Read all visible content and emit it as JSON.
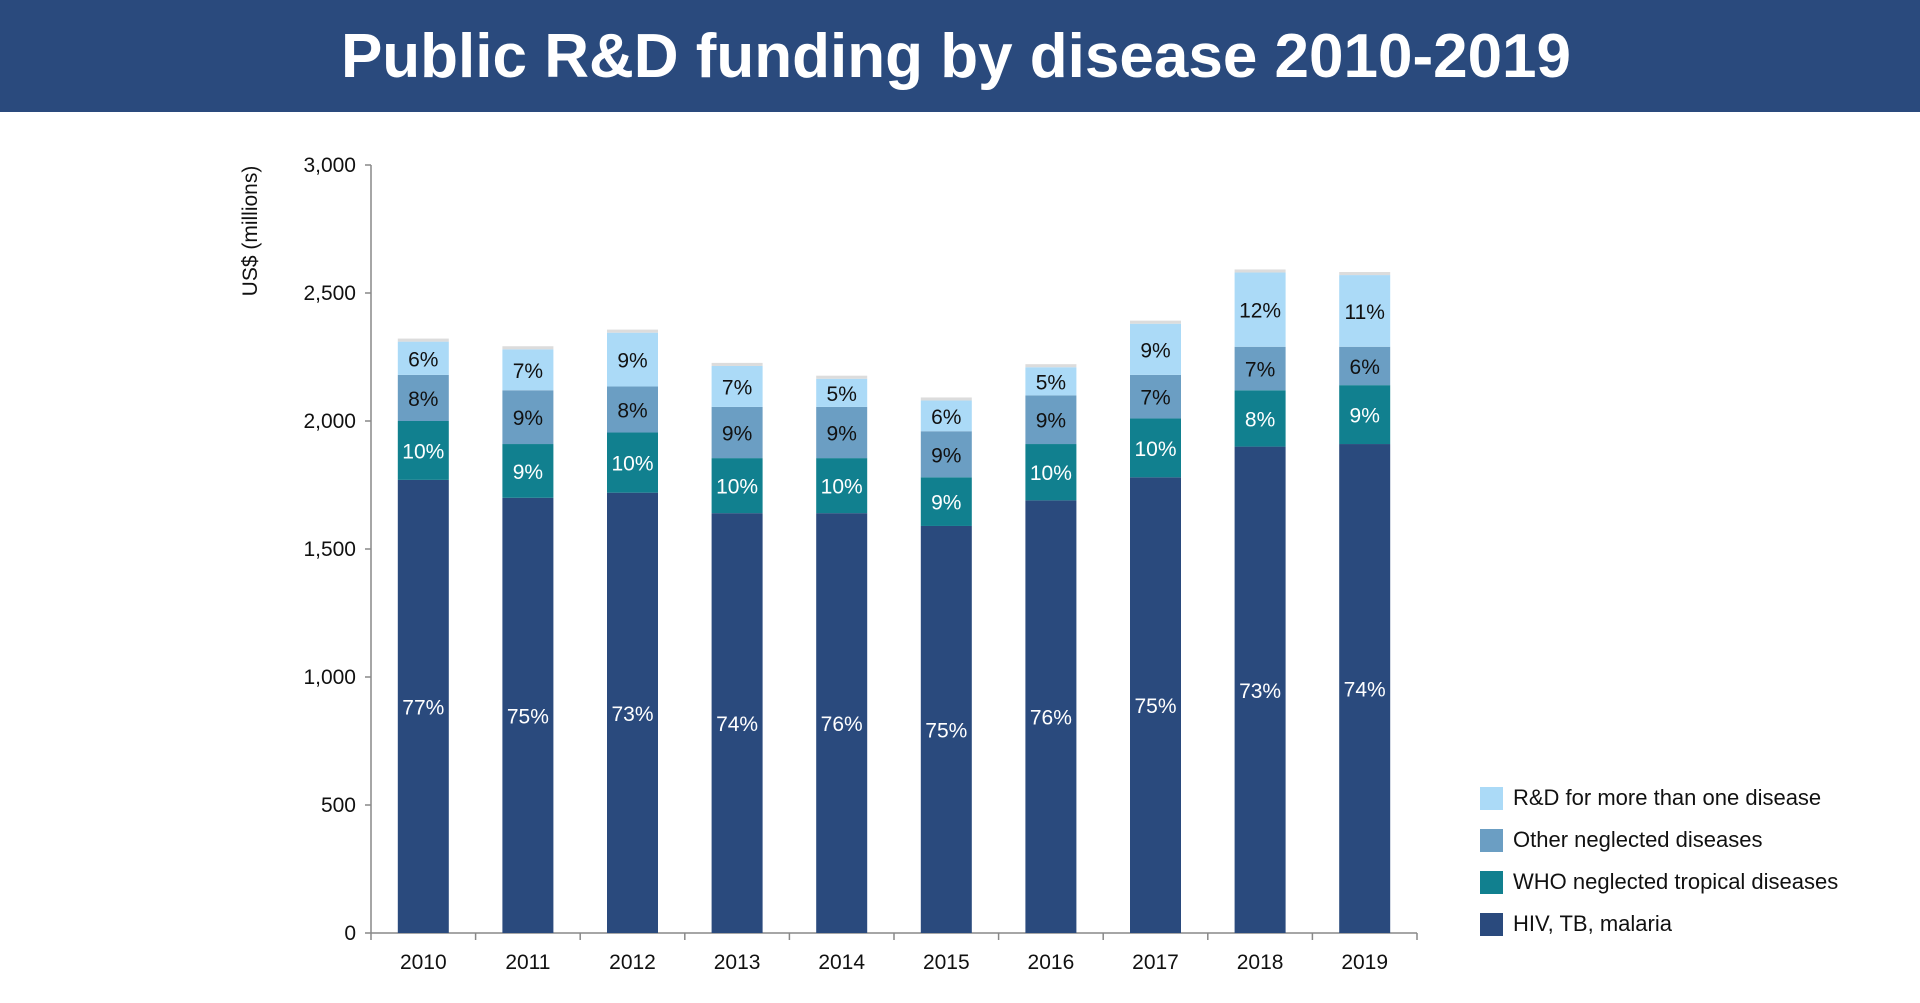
{
  "header": {
    "title": "Public R&D funding by disease 2010-2019"
  },
  "chart_data": {
    "type": "bar",
    "stacked": true,
    "title": "Public R&D funding by disease 2010-2019",
    "xlabel": "",
    "ylabel": "US$ (millions)",
    "ylim": [
      0,
      3000
    ],
    "yticks": [
      0,
      500,
      1000,
      1500,
      2000,
      2500,
      3000
    ],
    "ytick_labels": [
      "0",
      "500",
      "1,000",
      "1,500",
      "2,000",
      "2,500",
      "3,000"
    ],
    "grid": false,
    "legend_position": "bottom-right",
    "categories": [
      "2010",
      "2011",
      "2012",
      "2013",
      "2014",
      "2015",
      "2016",
      "2017",
      "2018",
      "2019"
    ],
    "series": [
      {
        "name": "HIV, TB, malaria",
        "color": "#2a4a7d",
        "label_color": "#ffffff",
        "values": [
          1770,
          1700,
          1720,
          1640,
          1640,
          1590,
          1690,
          1780,
          1900,
          1910
        ],
        "labels": [
          "77%",
          "75%",
          "73%",
          "74%",
          "76%",
          "75%",
          "76%",
          "75%",
          "73%",
          "74%"
        ]
      },
      {
        "name": "WHO neglected tropical diseases",
        "color": "#11808f",
        "label_color": "#ffffff",
        "values": [
          230,
          210,
          235,
          215,
          215,
          190,
          220,
          230,
          220,
          230
        ],
        "labels": [
          "10%",
          "9%",
          "10%",
          "10%",
          "10%",
          "9%",
          "10%",
          "10%",
          "8%",
          "9%"
        ]
      },
      {
        "name": "Other neglected diseases",
        "color": "#6b9ec3",
        "label_color": "#111111",
        "values": [
          180,
          210,
          180,
          200,
          200,
          180,
          190,
          170,
          170,
          150
        ],
        "labels": [
          "8%",
          "9%",
          "8%",
          "9%",
          "9%",
          "9%",
          "9%",
          "7%",
          "7%",
          "6%"
        ]
      },
      {
        "name": "R&D for more than one disease",
        "color": "#abdaf7",
        "label_color": "#111111",
        "values": [
          130,
          160,
          210,
          160,
          110,
          120,
          110,
          200,
          290,
          280
        ],
        "labels": [
          "6%",
          "7%",
          "9%",
          "7%",
          "5%",
          "6%",
          "5%",
          "9%",
          "12%",
          "11%"
        ]
      },
      {
        "name": "",
        "color": "#dcdcdc",
        "label_color": "#111111",
        "values": [
          12,
          12,
          12,
          12,
          12,
          12,
          12,
          12,
          12,
          12
        ],
        "labels": [
          "",
          "",
          "",
          "",
          "",
          "",
          "",
          "",
          "",
          ""
        ]
      }
    ],
    "legend": [
      {
        "name": "R&D for more than one disease",
        "color": "#abdaf7"
      },
      {
        "name": "Other neglected diseases",
        "color": "#6b9ec3"
      },
      {
        "name": "WHO neglected tropical diseases",
        "color": "#11808f"
      },
      {
        "name": "HIV, TB, malaria",
        "color": "#2a4a7d"
      }
    ]
  }
}
